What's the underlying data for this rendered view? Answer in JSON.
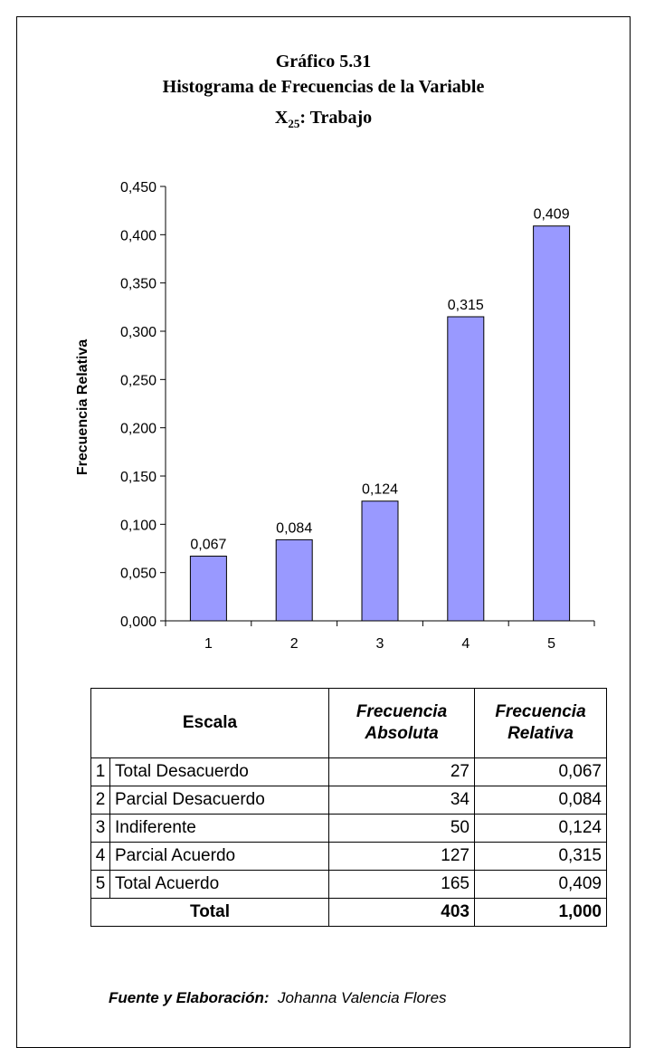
{
  "title": {
    "line1": "Gráfico 5.31",
    "line2": "Histograma de Frecuencias de la Variable",
    "line3_main": "X",
    "line3_sub": "25",
    "line3_rest": ": Trabajo"
  },
  "chart_data": {
    "type": "bar",
    "categories": [
      "1",
      "2",
      "3",
      "4",
      "5"
    ],
    "values": [
      0.067,
      0.084,
      0.124,
      0.315,
      0.409
    ],
    "value_labels": [
      "0,067",
      "0,084",
      "0,124",
      "0,315",
      "0,409"
    ],
    "ylabel": "Frecuencia Relativa",
    "xlabel": "",
    "ylim": [
      0,
      0.45
    ],
    "yticks": [
      0,
      0.05,
      0.1,
      0.15,
      0.2,
      0.25,
      0.3,
      0.35,
      0.4,
      0.45
    ],
    "ytick_labels": [
      "0,000",
      "0,050",
      "0,100",
      "0,150",
      "0,200",
      "0,250",
      "0,300",
      "0,350",
      "0,400",
      "0,450"
    ],
    "bar_color": "#9999ff",
    "grid": false,
    "legend": "none"
  },
  "table": {
    "headers": {
      "escala": "Escala",
      "abs_line1": "Frecuencia",
      "abs_line2": "Absoluta",
      "rel_line1": "Frecuencia",
      "rel_line2": "Relativa"
    },
    "rows": [
      {
        "idx": "1",
        "label": "Total Desacuerdo",
        "abs": "27",
        "rel": "0,067"
      },
      {
        "idx": "2",
        "label": "Parcial Desacuerdo",
        "abs": "34",
        "rel": "0,084"
      },
      {
        "idx": "3",
        "label": "Indiferente",
        "abs": "50",
        "rel": "0,124"
      },
      {
        "idx": "4",
        "label": "Parcial Acuerdo",
        "abs": "127",
        "rel": "0,315"
      },
      {
        "idx": "5",
        "label": "Total Acuerdo",
        "abs": "165",
        "rel": "0,409"
      }
    ],
    "total": {
      "label": "Total",
      "abs": "403",
      "rel": "1,000"
    }
  },
  "source": {
    "label": "Fuente y Elaboración:",
    "author": "Johanna Valencia Flores"
  }
}
